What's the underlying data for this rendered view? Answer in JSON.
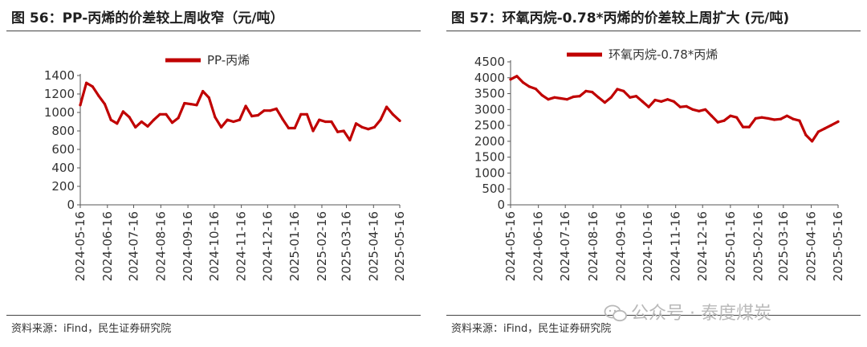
{
  "charts": [
    {
      "title": "图 56：PP-丙烯的价差较上周收窄（元/吨）",
      "source": "资料来源：iFind，民生证券研究院"
    },
    {
      "title": "图 57：环氧丙烷-0.78*丙烯的价差较上周扩大 (元/吨)",
      "source": "资料来源：iFind，民生证券研究院"
    }
  ],
  "watermark": {
    "text": "公众号 · 泰度煤炭",
    "icon": "wechat-icon"
  },
  "chart_data": [
    {
      "type": "line",
      "title": "",
      "xlabel": "",
      "ylabel": "",
      "ylim": [
        0,
        1400
      ],
      "yticks": [
        0,
        200,
        400,
        600,
        800,
        1000,
        1200,
        1400
      ],
      "xticks": [
        "2024-05-16",
        "2024-06-16",
        "2024-07-16",
        "2024-08-16",
        "2024-09-16",
        "2024-10-16",
        "2024-11-16",
        "2024-12-16",
        "2025-01-16",
        "2025-02-16",
        "2025-03-16",
        "2025-04-16",
        "2025-05-16"
      ],
      "legend_position": "top-center",
      "grid": false,
      "series_color": "#c00000",
      "series": [
        {
          "name": "PP-丙烯",
          "x": [
            "2024-05-16",
            "2024-05-23",
            "2024-05-30",
            "2024-06-06",
            "2024-06-13",
            "2024-06-20",
            "2024-06-27",
            "2024-07-04",
            "2024-07-11",
            "2024-07-18",
            "2024-07-25",
            "2024-08-01",
            "2024-08-08",
            "2024-08-15",
            "2024-08-22",
            "2024-08-29",
            "2024-09-05",
            "2024-09-12",
            "2024-09-19",
            "2024-09-26",
            "2024-10-03",
            "2024-10-10",
            "2024-10-17",
            "2024-10-24",
            "2024-10-31",
            "2024-11-07",
            "2024-11-14",
            "2024-11-21",
            "2024-11-28",
            "2024-12-05",
            "2024-12-12",
            "2024-12-19",
            "2024-12-26",
            "2025-01-02",
            "2025-01-09",
            "2025-01-16",
            "2025-01-23",
            "2025-01-30",
            "2025-02-06",
            "2025-02-13",
            "2025-02-20",
            "2025-02-27",
            "2025-03-06",
            "2025-03-13",
            "2025-03-20",
            "2025-03-27",
            "2025-04-03",
            "2025-04-10",
            "2025-04-17",
            "2025-04-24",
            "2025-05-01",
            "2025-05-08",
            "2025-05-16"
          ],
          "values": [
            1080,
            1320,
            1280,
            1180,
            1090,
            920,
            880,
            1010,
            950,
            840,
            900,
            850,
            920,
            980,
            980,
            890,
            940,
            1100,
            1090,
            1080,
            1230,
            1160,
            950,
            840,
            920,
            900,
            920,
            1070,
            960,
            970,
            1020,
            1020,
            1040,
            930,
            830,
            830,
            980,
            980,
            800,
            920,
            900,
            900,
            790,
            800,
            700,
            880,
            840,
            820,
            840,
            920,
            1060,
            980,
            910
          ]
        }
      ]
    },
    {
      "type": "line",
      "title": "",
      "xlabel": "",
      "ylabel": "",
      "ylim": [
        0,
        4500
      ],
      "yticks": [
        0,
        500,
        1000,
        1500,
        2000,
        2500,
        3000,
        3500,
        4000,
        4500
      ],
      "xticks": [
        "2024-05-16",
        "2024-06-16",
        "2024-07-16",
        "2024-08-16",
        "2024-09-16",
        "2024-10-16",
        "2024-11-16",
        "2024-12-16",
        "2025-01-16",
        "2025-02-16",
        "2025-03-16",
        "2025-04-16",
        "2025-05-16"
      ],
      "legend_position": "top-center",
      "grid": false,
      "series_color": "#c00000",
      "series": [
        {
          "name": "环氧丙烷-0.78*丙烯",
          "x": [
            "2024-05-16",
            "2024-05-23",
            "2024-05-30",
            "2024-06-06",
            "2024-06-13",
            "2024-06-20",
            "2024-06-27",
            "2024-07-04",
            "2024-07-11",
            "2024-07-18",
            "2024-07-25",
            "2024-08-01",
            "2024-08-08",
            "2024-08-15",
            "2024-08-22",
            "2024-08-29",
            "2024-09-05",
            "2024-09-12",
            "2024-09-19",
            "2024-09-26",
            "2024-10-03",
            "2024-10-10",
            "2024-10-17",
            "2024-10-24",
            "2024-10-31",
            "2024-11-07",
            "2024-11-14",
            "2024-11-21",
            "2024-11-28",
            "2024-12-05",
            "2024-12-12",
            "2024-12-19",
            "2024-12-26",
            "2025-01-02",
            "2025-01-09",
            "2025-01-16",
            "2025-01-23",
            "2025-01-30",
            "2025-02-06",
            "2025-02-13",
            "2025-02-20",
            "2025-02-27",
            "2025-03-06",
            "2025-03-13",
            "2025-03-20",
            "2025-03-27",
            "2025-04-03",
            "2025-04-10",
            "2025-04-17",
            "2025-04-24",
            "2025-05-01",
            "2025-05-08",
            "2025-05-16"
          ],
          "values": [
            3950,
            4050,
            3850,
            3720,
            3650,
            3450,
            3320,
            3380,
            3350,
            3320,
            3400,
            3420,
            3580,
            3550,
            3380,
            3220,
            3380,
            3640,
            3580,
            3380,
            3420,
            3250,
            3080,
            3300,
            3250,
            3320,
            3250,
            3080,
            3100,
            3000,
            2950,
            3000,
            2800,
            2600,
            2650,
            2800,
            2750,
            2450,
            2450,
            2720,
            2750,
            2720,
            2680,
            2700,
            2800,
            2700,
            2650,
            2200,
            2000,
            2300,
            2400,
            2500,
            2620
          ]
        }
      ]
    }
  ]
}
